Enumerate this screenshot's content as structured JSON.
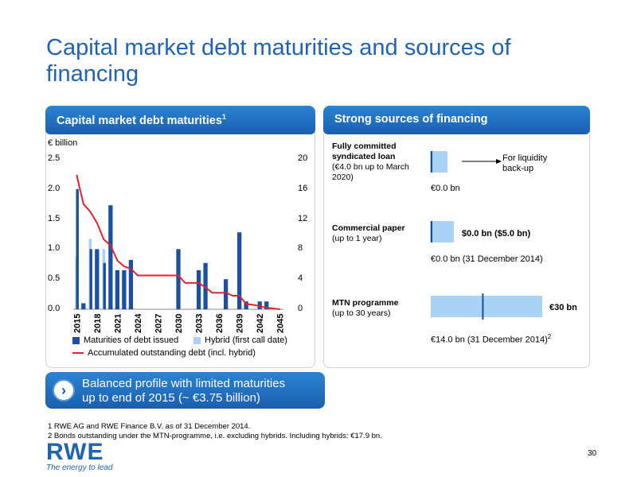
{
  "slide": {
    "title": "Capital market debt maturities and sources of financing",
    "page_number": "30"
  },
  "left_panel": {
    "header": "Capital market debt maturities",
    "header_sup": "1",
    "unit_label": "€ billion"
  },
  "right_panel": {
    "header": "Strong sources of financing",
    "loan": {
      "label_bold": "Fully committed syndicated loan",
      "label_rest": "(€4.0 bn up to March 2020)",
      "arrow_label": "For liquidity back-up",
      "value": "€0.0 bn"
    },
    "cp": {
      "label_bold": "Commercial paper",
      "label_rest": "(up to 1 year)",
      "bar_label": "$0.0 bn ($5.0 bn)",
      "value": "€0.0 bn (31 December 2014)"
    },
    "mtn": {
      "label_bold": "MTN programme",
      "label_rest": "(up to 30 years)",
      "bar_label": "€30 bn",
      "value": "€14.0 bn (31 December 2014)",
      "value_sup": "2",
      "used_fraction": 0.467
    }
  },
  "callout": {
    "line1": "Balanced profile with limited maturities",
    "line2": "up to end of 2015 (~ €3.75 billion)",
    "icon": "chevron-right-icon"
  },
  "footnotes": [
    "1  RWE AG and RWE Finance B.V. as of 31 December 2014.",
    "2  Bonds outstanding under the MTN-programme, i.e. excluding hybrids. Including hybrids: €17.9 bn."
  ],
  "logo": {
    "name": "RWE",
    "tagline": "The energy to lead"
  },
  "colors": {
    "brand_blue": "#1f64b4",
    "dark_bar": "#1a4fa3",
    "light_bar": "#a9d2f5",
    "line_red": "#e3232c"
  },
  "chart_data": {
    "type": "bar",
    "x": [
      2015,
      2016,
      2017,
      2018,
      2019,
      2020,
      2021,
      2022,
      2023,
      2024,
      2025,
      2026,
      2027,
      2028,
      2029,
      2030,
      2031,
      2032,
      2033,
      2034,
      2035,
      2036,
      2037,
      2038,
      2039,
      2040,
      2041,
      2042,
      2043,
      2044,
      2045
    ],
    "xtick_labels": [
      "2015",
      "2018",
      "2021",
      "2024",
      "2027",
      "2030",
      "2033",
      "2036",
      "2039",
      "2042",
      "2045"
    ],
    "left_axis": {
      "ylim": [
        0,
        2.5
      ],
      "ticks": [
        "0.0",
        "0.5",
        "1.0",
        "1.5",
        "2.0",
        "2.5"
      ]
    },
    "right_axis": {
      "ylim": [
        0,
        20
      ],
      "ticks": [
        "0",
        "4",
        "8",
        "12",
        "16",
        "20"
      ]
    },
    "series": [
      {
        "name": "Maturities of debt issued",
        "kind": "bar",
        "axis": "left",
        "values": [
          2.0,
          0.1,
          1.0,
          1.0,
          0.77,
          1.73,
          0.65,
          0.65,
          0.82,
          0,
          0,
          0,
          0,
          0,
          0,
          1.0,
          0,
          0,
          0.65,
          0.77,
          0,
          0,
          0.5,
          0,
          1.28,
          0.13,
          0,
          0.13,
          0.13,
          0,
          0
        ]
      },
      {
        "name": "Hybrid (first call date)",
        "kind": "bar",
        "axis": "left",
        "values": [
          0.87,
          0,
          1.17,
          0,
          1.0,
          0,
          0,
          0,
          0,
          0,
          0,
          0,
          0,
          0,
          0,
          0,
          0,
          0,
          0,
          0,
          0,
          0,
          0,
          0,
          0,
          0,
          0,
          0,
          0,
          0,
          0
        ]
      },
      {
        "name": "Accumulated outstanding debt (incl. hybrid)",
        "kind": "line",
        "axis": "right",
        "values": [
          17.9,
          14.0,
          13.0,
          11.5,
          9.3,
          8.5,
          6.5,
          5.7,
          5.4,
          4.5,
          4.5,
          4.5,
          4.5,
          4.5,
          4.5,
          4.5,
          3.5,
          3.5,
          3.5,
          2.9,
          2.2,
          2.2,
          2.2,
          1.8,
          1.8,
          0.7,
          0.6,
          0.4,
          0.2,
          0.1,
          0.0
        ]
      }
    ]
  }
}
